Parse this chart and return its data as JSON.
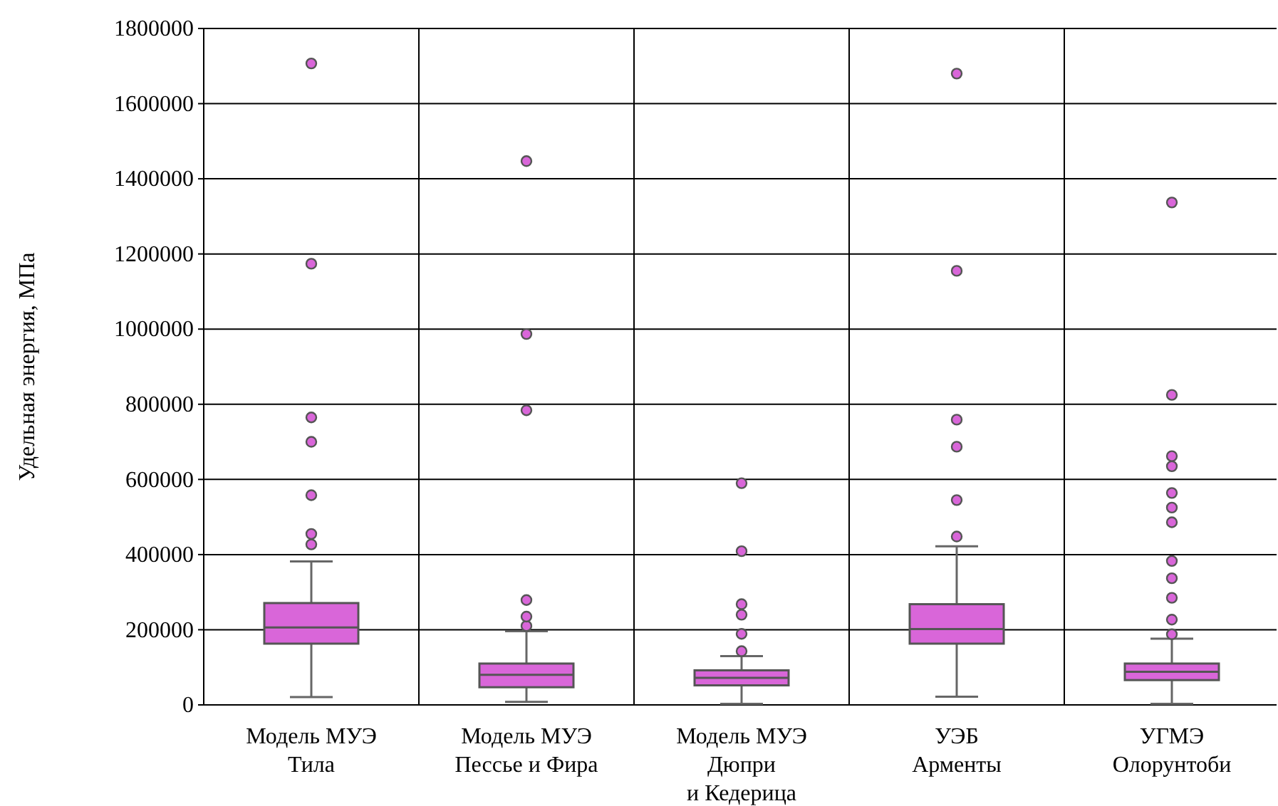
{
  "chart_data": {
    "type": "box",
    "ylabel": "Удельная энергия, МПа",
    "categories": [
      "Модель МУЭ\nТила",
      "Модель МУЭ\nПессье и Фира",
      "Модель МУЭ\nДюпри\nи Кедерица",
      "УЭБ\nАрменты",
      "УГМЭ\nОлорунтоби"
    ],
    "color": "#d966d9",
    "boxes": [
      {
        "low": 21000,
        "q1": 163000,
        "median": 206000,
        "q3": 271000,
        "high": 382000,
        "outliers": [
          427000,
          455000,
          558000,
          700000,
          765000,
          1174000,
          1707000
        ]
      },
      {
        "low": 8000,
        "q1": 47000,
        "median": 80000,
        "q3": 110000,
        "high": 196000,
        "outliers": [
          210000,
          235000,
          279000,
          784000,
          987000,
          1447000
        ]
      },
      {
        "low": 3000,
        "q1": 52000,
        "median": 72000,
        "q3": 92000,
        "high": 130000,
        "outliers": [
          143000,
          189000,
          240000,
          268000,
          409000,
          590000
        ]
      },
      {
        "low": 22000,
        "q1": 163000,
        "median": 202000,
        "q3": 268000,
        "high": 422000,
        "outliers": [
          448000,
          545000,
          687000,
          759000,
          1155000,
          1680000
        ]
      },
      {
        "low": 3000,
        "q1": 66000,
        "median": 88000,
        "q3": 110000,
        "high": 176000,
        "outliers": [
          188000,
          227000,
          285000,
          337000,
          383000,
          486000,
          525000,
          564000,
          635000,
          662000,
          825000,
          1337000
        ]
      }
    ],
    "ylim": [
      0,
      1800000
    ],
    "yticks": [
      0,
      200000,
      400000,
      600000,
      800000,
      1000000,
      1200000,
      1400000,
      1600000,
      1800000
    ],
    "grid": true
  }
}
